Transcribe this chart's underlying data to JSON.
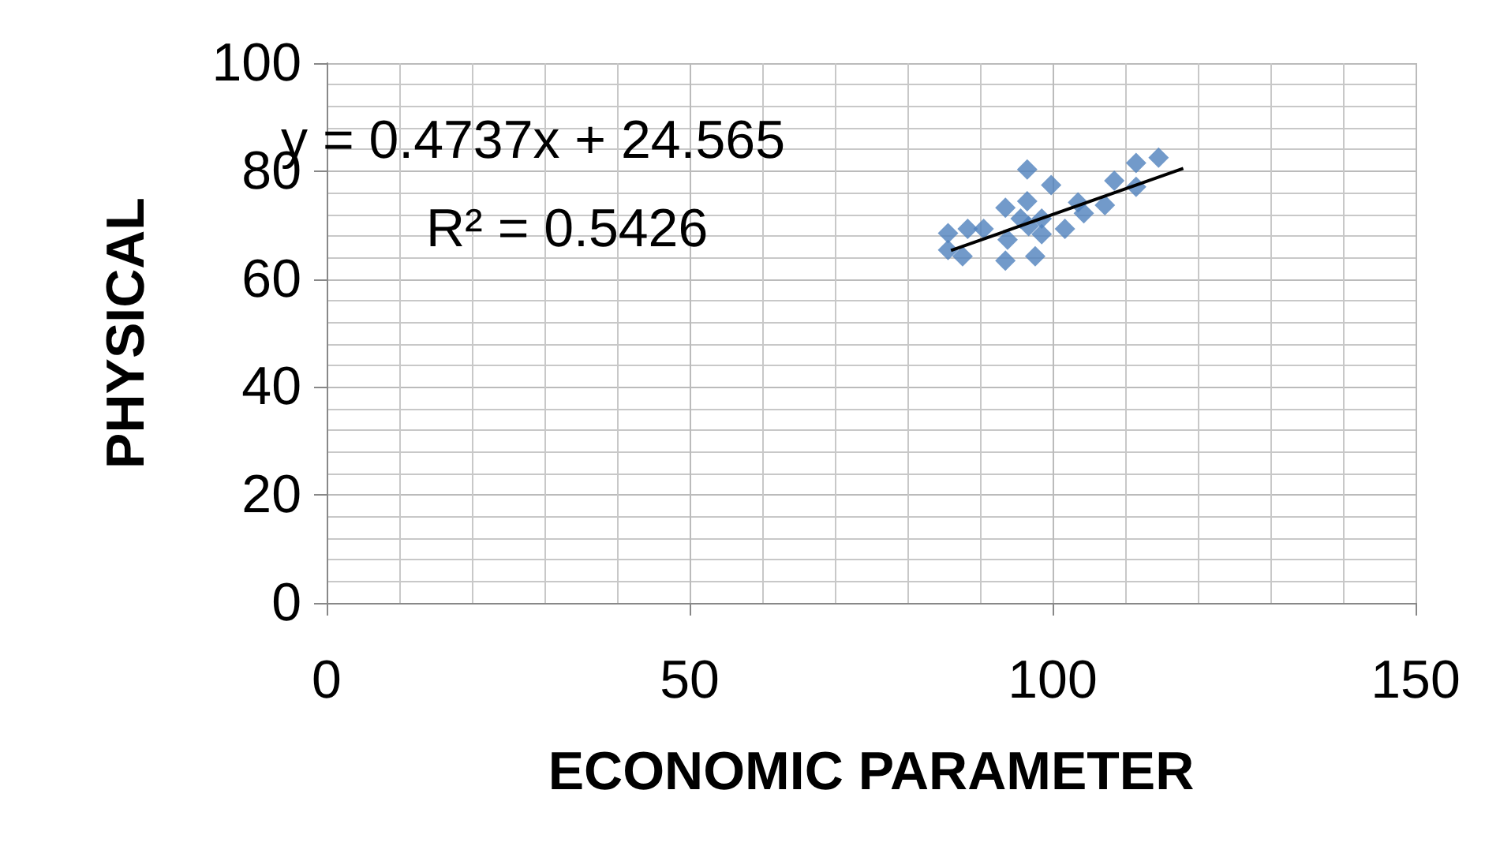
{
  "chart_data": {
    "type": "scatter",
    "xlabel": "ECONOMIC PARAMETER",
    "ylabel": "PHYSICAL",
    "xlim": [
      0,
      150
    ],
    "xticks": [
      0,
      50,
      100,
      150
    ],
    "ylim": [
      0,
      100
    ],
    "yticks": [
      0,
      20,
      40,
      60,
      80,
      100
    ],
    "grid": true,
    "marker": "diamond",
    "annotations": [
      "y = 0.4737x + 24.565",
      "R² = 0.5426"
    ],
    "series": [
      {
        "color": "#4f81bd",
        "x": [
          85.6,
          85.6,
          87.6,
          88.3,
          90.5,
          93.5,
          93.8,
          93.5,
          96.5,
          96.5,
          95.6,
          96.7,
          98.5,
          98.5,
          97.6,
          99.8,
          101.7,
          103.5,
          104.3,
          107.2,
          108.5,
          111.5,
          111.5,
          114.6
        ],
        "values": [
          68.5,
          65.4,
          64.2,
          69.3,
          69.3,
          73.2,
          67.3,
          63.4,
          80.3,
          74.4,
          71.2,
          69.8,
          71.2,
          68.3,
          64.2,
          77.4,
          69.3,
          74.2,
          72.2,
          73.7,
          78.2,
          81.5,
          77.1,
          82.5
        ]
      },
      {
        "type": "line",
        "color": "#000000",
        "marker": "none",
        "line_style": "solid",
        "x": [
          86,
          118
        ],
        "values": [
          65.3,
          80.5
        ]
      }
    ]
  }
}
